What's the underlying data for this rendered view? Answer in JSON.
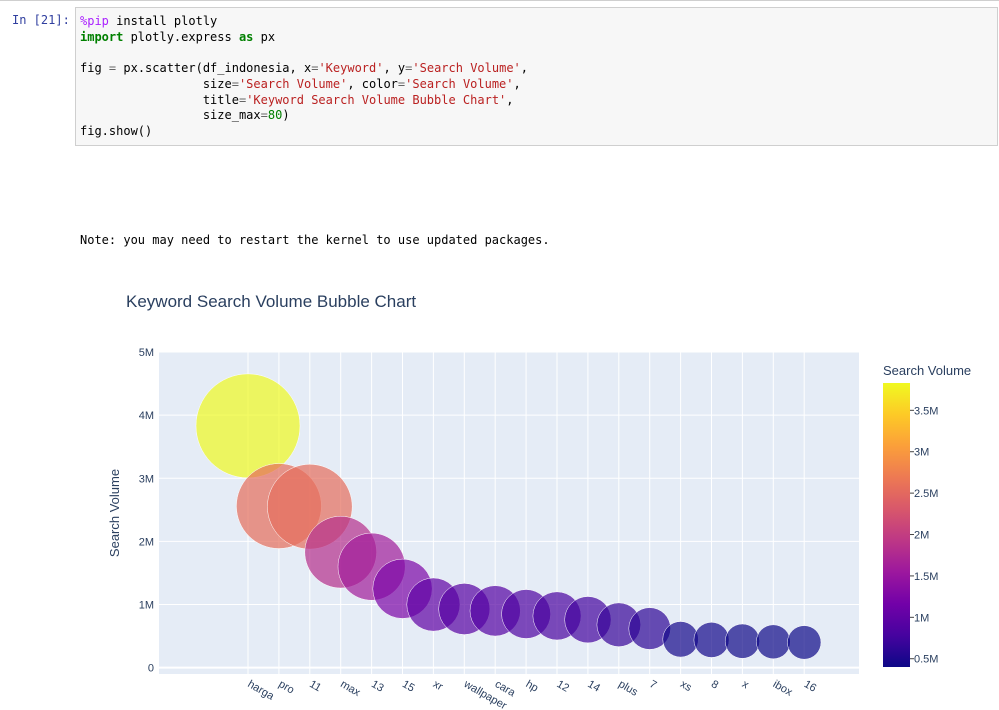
{
  "cell": {
    "prompt": "In [21]:",
    "code": {
      "l1_magic": "%pip",
      "l1_rest": " install plotly",
      "l2_import": "import",
      "l2_mod": " plotly.express ",
      "l2_as": "as",
      "l2_alias": " px",
      "l4_a": "fig ",
      "l4_eq": "=",
      "l4_b": " px.scatter(df_indonesia, x",
      "l4_eq2": "=",
      "l4_s1": "'Keyword'",
      "l4_c": ", y",
      "l4_eq3": "=",
      "l4_s2": "'Search Volume'",
      "l4_d": ",",
      "l5_a": "                 size",
      "l5_eq": "=",
      "l5_s1": "'Search Volume'",
      "l5_b": ", color",
      "l5_eq2": "=",
      "l5_s2": "'Search Volume'",
      "l5_c": ",",
      "l6_a": "                 title",
      "l6_eq": "=",
      "l6_s": "'Keyword Search Volume Bubble Chart'",
      "l6_c": ",",
      "l7_a": "                 size_max",
      "l7_eq": "=",
      "l7_n": "80",
      "l7_c": ")",
      "l8": "fig.show()"
    },
    "stdout": "Note: you may need to restart the kernel to use updated packages."
  },
  "chart_data": {
    "type": "scatter",
    "title": "Keyword Search Volume Bubble Chart",
    "xlabel": "",
    "ylabel": "Search Volume",
    "ylim": [
      -100000,
      5000000
    ],
    "ytick_values": [
      0,
      1000000,
      2000000,
      3000000,
      4000000,
      5000000
    ],
    "ytick_labels": [
      "0",
      "1M",
      "2M",
      "3M",
      "4M",
      "5M"
    ],
    "grid": true,
    "categories": [
      "harga",
      "pro",
      "11",
      "max",
      "13",
      "15",
      "xr",
      "wallpaper",
      "cara",
      "hp",
      "12",
      "14",
      "plus",
      "7",
      "xs",
      "8",
      "x",
      "ibox",
      "16"
    ],
    "values": [
      3830000,
      2560000,
      2550000,
      1830000,
      1600000,
      1250000,
      1000000,
      930000,
      900000,
      850000,
      820000,
      760000,
      680000,
      620000,
      450000,
      440000,
      420000,
      410000,
      400000
    ],
    "size_max": 80,
    "colorbar": {
      "title": "Search Volume",
      "range": [
        400000,
        3830000
      ],
      "tick_values": [
        500000,
        1000000,
        1500000,
        2000000,
        2500000,
        3000000,
        3500000
      ],
      "tick_labels": [
        "0.5M",
        "1M",
        "1.5M",
        "2M",
        "2.5M",
        "3M",
        "3.5M"
      ],
      "colorscale": [
        "#0d0887",
        "#46039f",
        "#7201a8",
        "#9c179e",
        "#bd3786",
        "#d8576b",
        "#ed7953",
        "#fb9f3a",
        "#fdca26",
        "#f0f921"
      ]
    }
  }
}
